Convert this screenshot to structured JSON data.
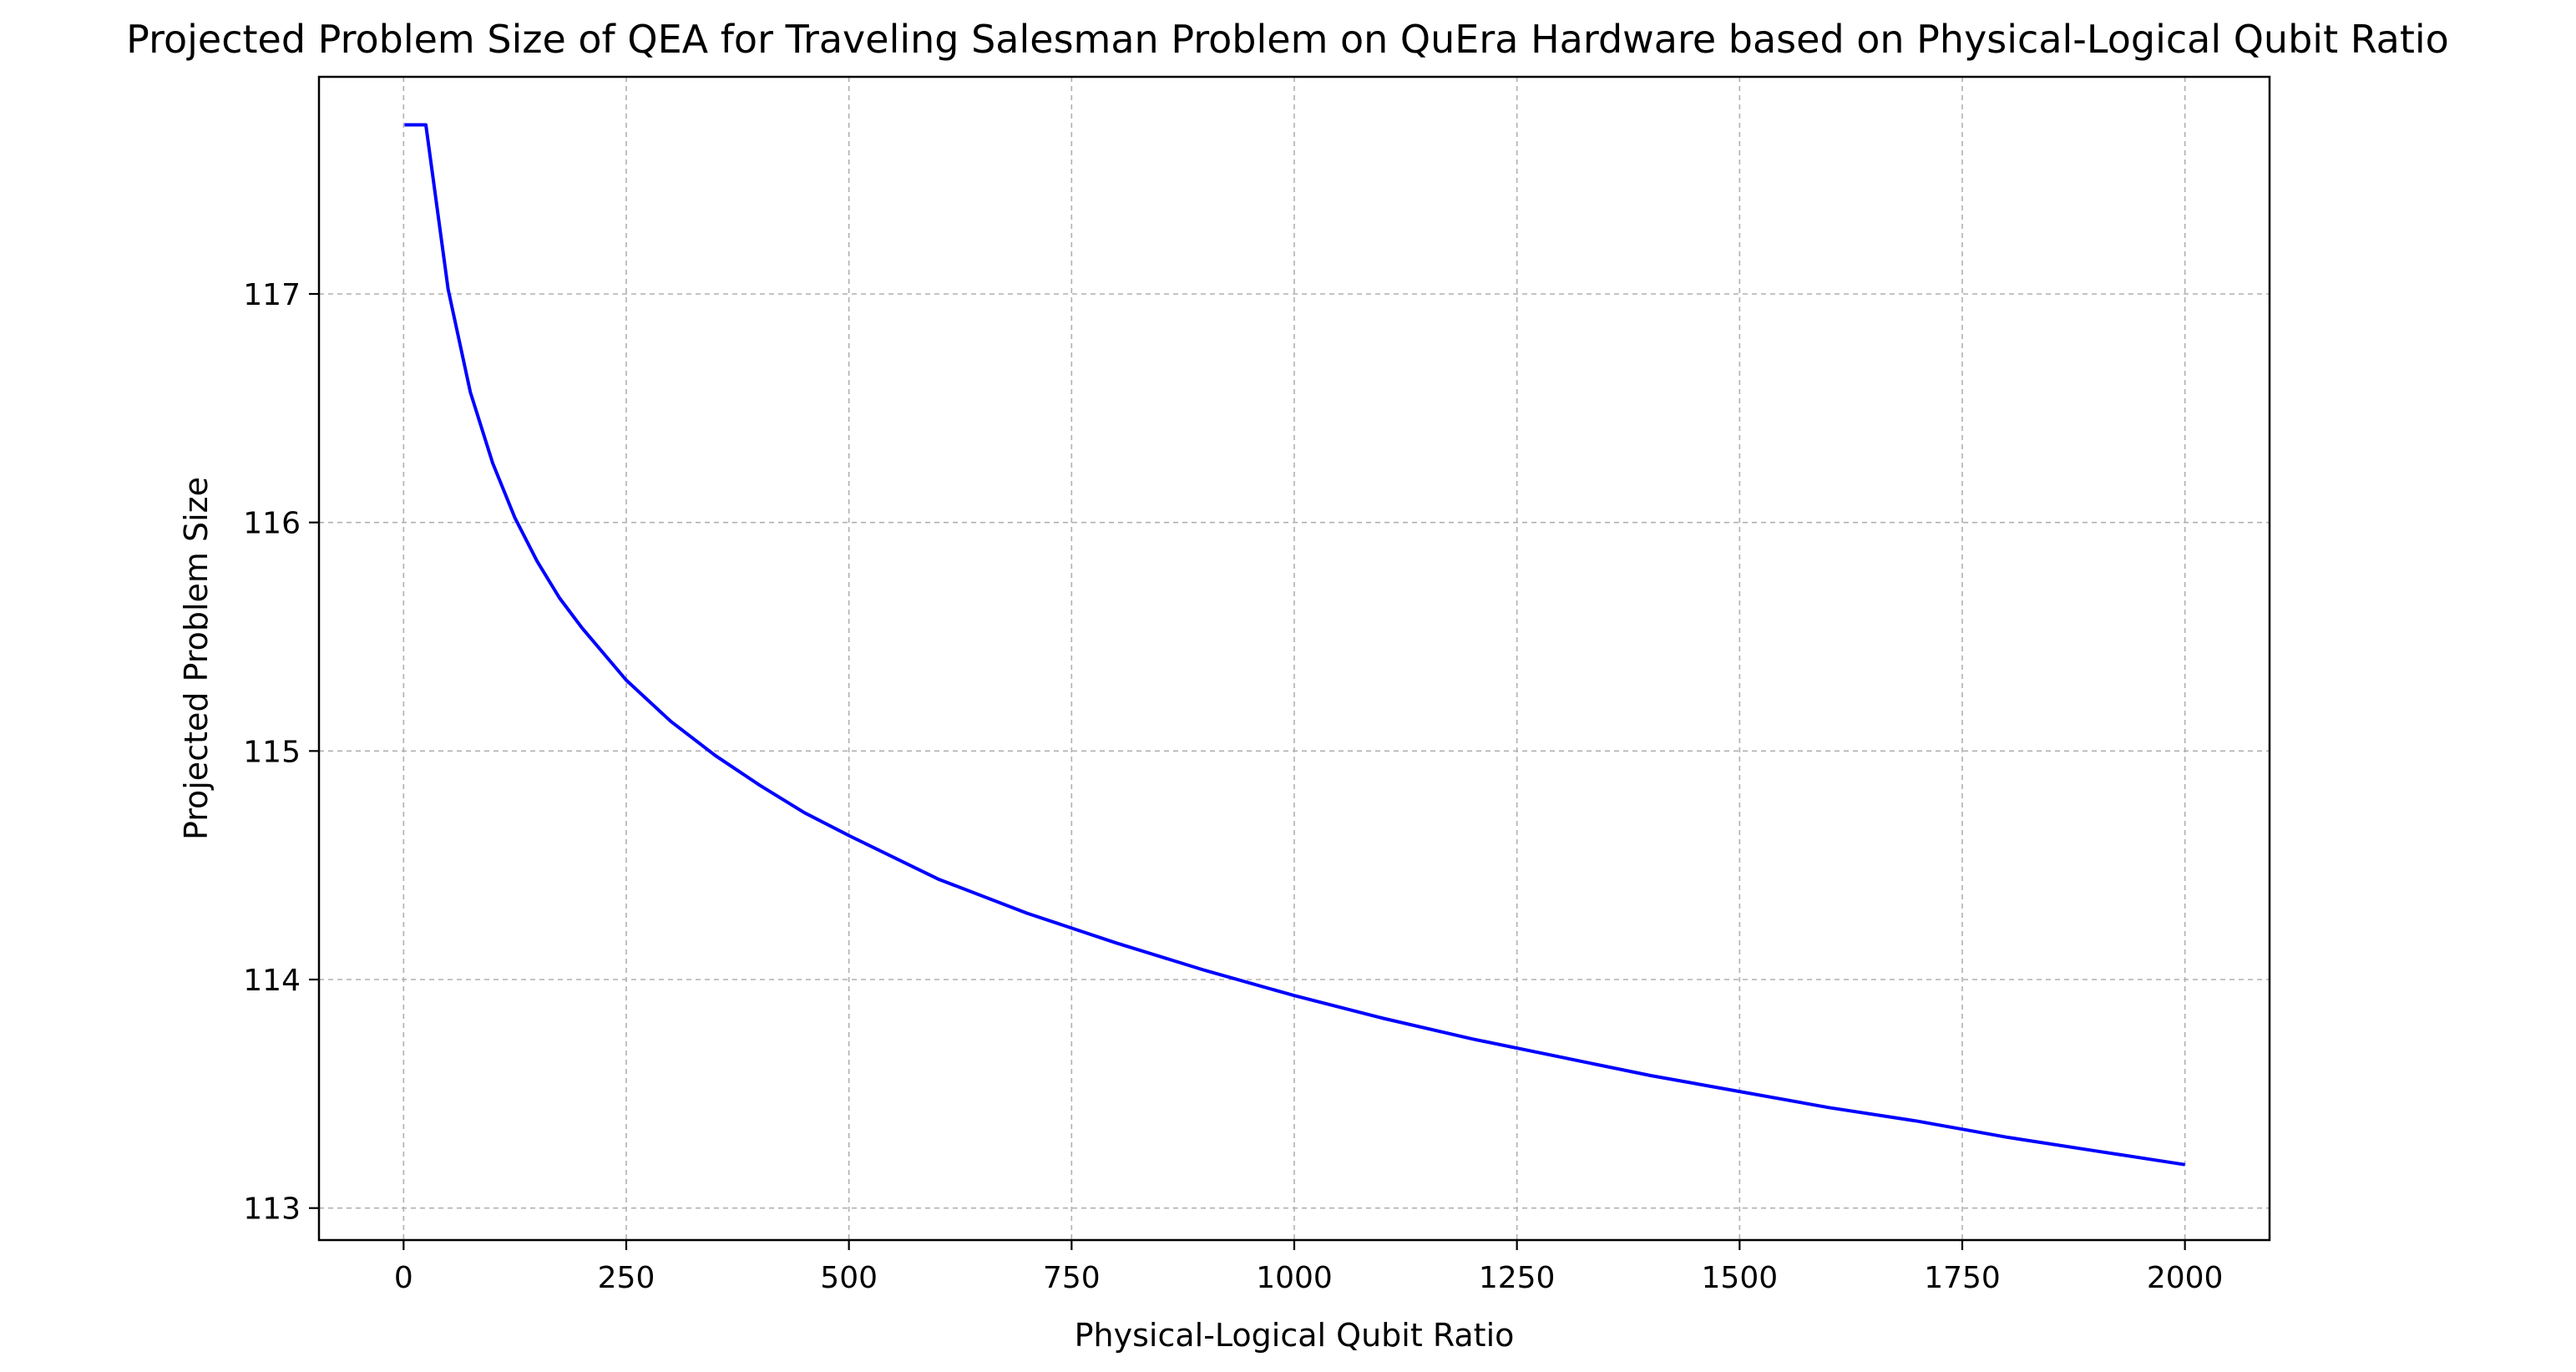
{
  "chart_data": {
    "type": "line",
    "title": "Projected Problem Size of QEA for Traveling Salesman Problem on QuEra Hardware based on Physical-Logical Qubit Ratio",
    "xlabel": "Physical-Logical Qubit Ratio",
    "ylabel": "Projected Problem Size",
    "xlim": [
      -95,
      2095
    ],
    "ylim": [
      112.86,
      117.95
    ],
    "xticks": [
      0,
      250,
      500,
      750,
      1000,
      1250,
      1500,
      1750,
      2000
    ],
    "yticks": [
      113,
      114,
      115,
      116,
      117
    ],
    "grid": true,
    "series": [
      {
        "color": "#0000ff",
        "x": [
          1,
          25,
          50,
          75,
          100,
          125,
          150,
          175,
          200,
          250,
          300,
          350,
          400,
          450,
          500,
          600,
          700,
          800,
          900,
          1000,
          1100,
          1200,
          1300,
          1400,
          1500,
          1600,
          1700,
          1800,
          1900,
          2000
        ],
        "y": [
          117.74,
          117.74,
          117.02,
          116.57,
          116.26,
          116.02,
          115.83,
          115.67,
          115.54,
          115.31,
          115.13,
          114.98,
          114.85,
          114.73,
          114.63,
          114.44,
          114.29,
          114.16,
          114.04,
          113.93,
          113.83,
          113.74,
          113.66,
          113.58,
          113.51,
          113.44,
          113.38,
          113.31,
          113.25,
          113.19
        ]
      }
    ]
  }
}
